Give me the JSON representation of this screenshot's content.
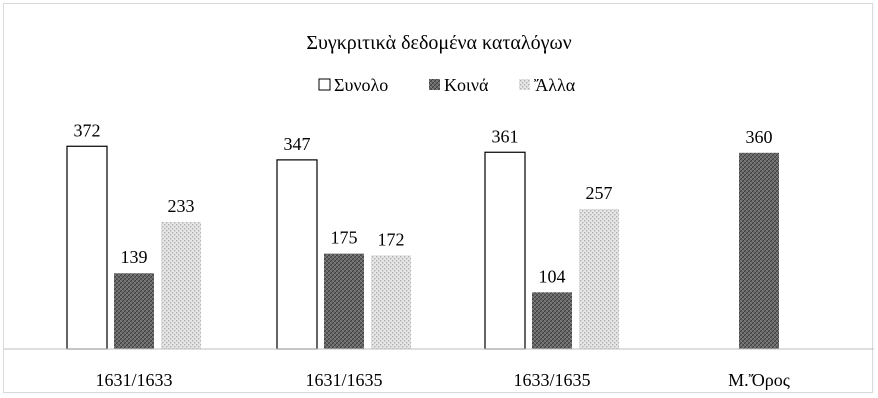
{
  "chart_data": {
    "type": "bar",
    "title": "Συγκριτικὰ δεδομένα καταλόγων",
    "categories": [
      "1631/1633",
      "1631/1635",
      "1633/1635",
      "Μ.Ὄρος"
    ],
    "series": [
      {
        "name": "Συνολο",
        "values": [
          372,
          347,
          361,
          null
        ],
        "fill": "white"
      },
      {
        "name": "Κοινά",
        "values": [
          139,
          175,
          104,
          360
        ],
        "fill": "dark-hatched"
      },
      {
        "name": "Ἄλλα",
        "values": [
          233,
          172,
          257,
          null
        ],
        "fill": "light-dotted"
      }
    ],
    "ylim": [
      0,
      400
    ],
    "legend_position": "top-center",
    "grid": false,
    "show_data_labels": true,
    "colors": {
      "axis": "#bfbfbf",
      "dark": "#595959",
      "light": "#d0d0d0",
      "border": "#000000"
    }
  }
}
